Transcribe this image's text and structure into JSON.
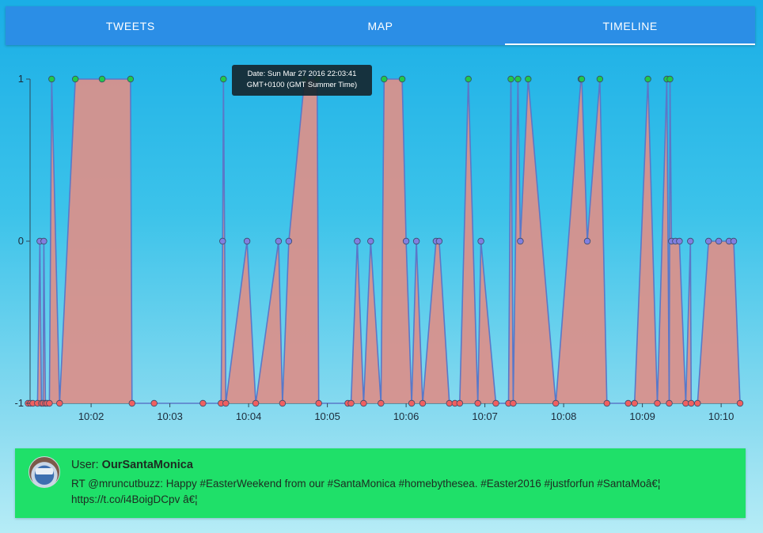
{
  "tabs": [
    {
      "label": "TWEETS",
      "active": false
    },
    {
      "label": "MAP",
      "active": false
    },
    {
      "label": "TIMELINE",
      "active": true
    }
  ],
  "tooltip": {
    "line1": "Date: Sun Mar 27 2016 22:03:41",
    "line2": "GMT+0100 (GMT Summer Time)"
  },
  "tweet": {
    "user_label": "User: ",
    "username": "OurSantaMonica",
    "text": "RT @mruncutbuzz: Happy #EasterWeekend from our #SantaMonica #homebythesea. #Easter2016 #justforfun #SantaMoâ€¦ https://t.co/i4BoigDCpv â€¦"
  },
  "chart_data": {
    "type": "area",
    "y_ticks": [
      "1",
      "0",
      "-1"
    ],
    "x_ticks": [
      "10:02",
      "10:03",
      "10:04",
      "10:05",
      "10:06",
      "10:07",
      "10:08",
      "10:09",
      "10:10"
    ],
    "ylim": [
      -1,
      1
    ],
    "xlim": [
      1.195,
      10.26
    ],
    "x_unit": "minutes past 10:00",
    "colors": {
      "positive": "#22c84a",
      "neutral": "#8080e0",
      "negative": "#f06060",
      "line": "#5a78c8",
      "fill": "#d8918c"
    },
    "points": [
      [
        1.2,
        -1
      ],
      [
        1.23,
        -1
      ],
      [
        1.26,
        -1
      ],
      [
        1.32,
        -1
      ],
      [
        1.35,
        0
      ],
      [
        1.37,
        -1
      ],
      [
        1.39,
        -1
      ],
      [
        1.4,
        0
      ],
      [
        1.42,
        -1
      ],
      [
        1.44,
        -1
      ],
      [
        1.47,
        -1
      ],
      [
        1.5,
        1
      ],
      [
        1.6,
        -1
      ],
      [
        1.8,
        1
      ],
      [
        2.14,
        1
      ],
      [
        2.5,
        1
      ],
      [
        2.52,
        -1
      ],
      [
        2.8,
        -1
      ],
      [
        3.42,
        -1
      ],
      [
        3.65,
        -1
      ],
      [
        3.67,
        0
      ],
      [
        3.68,
        1
      ],
      [
        3.71,
        -1
      ],
      [
        3.98,
        0
      ],
      [
        4.09,
        -1
      ],
      [
        4.38,
        0
      ],
      [
        4.43,
        -1
      ],
      [
        4.51,
        0
      ],
      [
        4.71,
        1
      ],
      [
        4.87,
        1
      ],
      [
        4.89,
        -1
      ],
      [
        5.26,
        -1
      ],
      [
        5.3,
        -1
      ],
      [
        5.38,
        0
      ],
      [
        5.46,
        -1
      ],
      [
        5.55,
        0
      ],
      [
        5.68,
        -1
      ],
      [
        5.72,
        1
      ],
      [
        5.95,
        1
      ],
      [
        6.0,
        0
      ],
      [
        6.07,
        -1
      ],
      [
        6.13,
        0
      ],
      [
        6.21,
        -1
      ],
      [
        6.38,
        0
      ],
      [
        6.42,
        0
      ],
      [
        6.55,
        -1
      ],
      [
        6.62,
        -1
      ],
      [
        6.68,
        -1
      ],
      [
        6.79,
        1
      ],
      [
        6.91,
        -1
      ],
      [
        6.95,
        0
      ],
      [
        7.14,
        -1
      ],
      [
        7.3,
        -1
      ],
      [
        7.33,
        1
      ],
      [
        7.36,
        -1
      ],
      [
        7.42,
        1
      ],
      [
        7.45,
        0
      ],
      [
        7.55,
        1
      ],
      [
        7.9,
        -1
      ],
      [
        8.22,
        1
      ],
      [
        8.23,
        1
      ],
      [
        8.3,
        0
      ],
      [
        8.46,
        1
      ],
      [
        8.55,
        -1
      ],
      [
        8.82,
        -1
      ],
      [
        8.9,
        -1
      ],
      [
        9.07,
        1
      ],
      [
        9.19,
        -1
      ],
      [
        9.31,
        1
      ],
      [
        9.34,
        -1
      ],
      [
        9.35,
        1
      ],
      [
        9.37,
        0
      ],
      [
        9.42,
        0
      ],
      [
        9.47,
        0
      ],
      [
        9.55,
        -1
      ],
      [
        9.61,
        0
      ],
      [
        9.62,
        -1
      ],
      [
        9.7,
        -1
      ],
      [
        9.84,
        0
      ],
      [
        9.97,
        0
      ],
      [
        10.1,
        0
      ],
      [
        10.16,
        0
      ],
      [
        10.24,
        -1
      ]
    ]
  }
}
